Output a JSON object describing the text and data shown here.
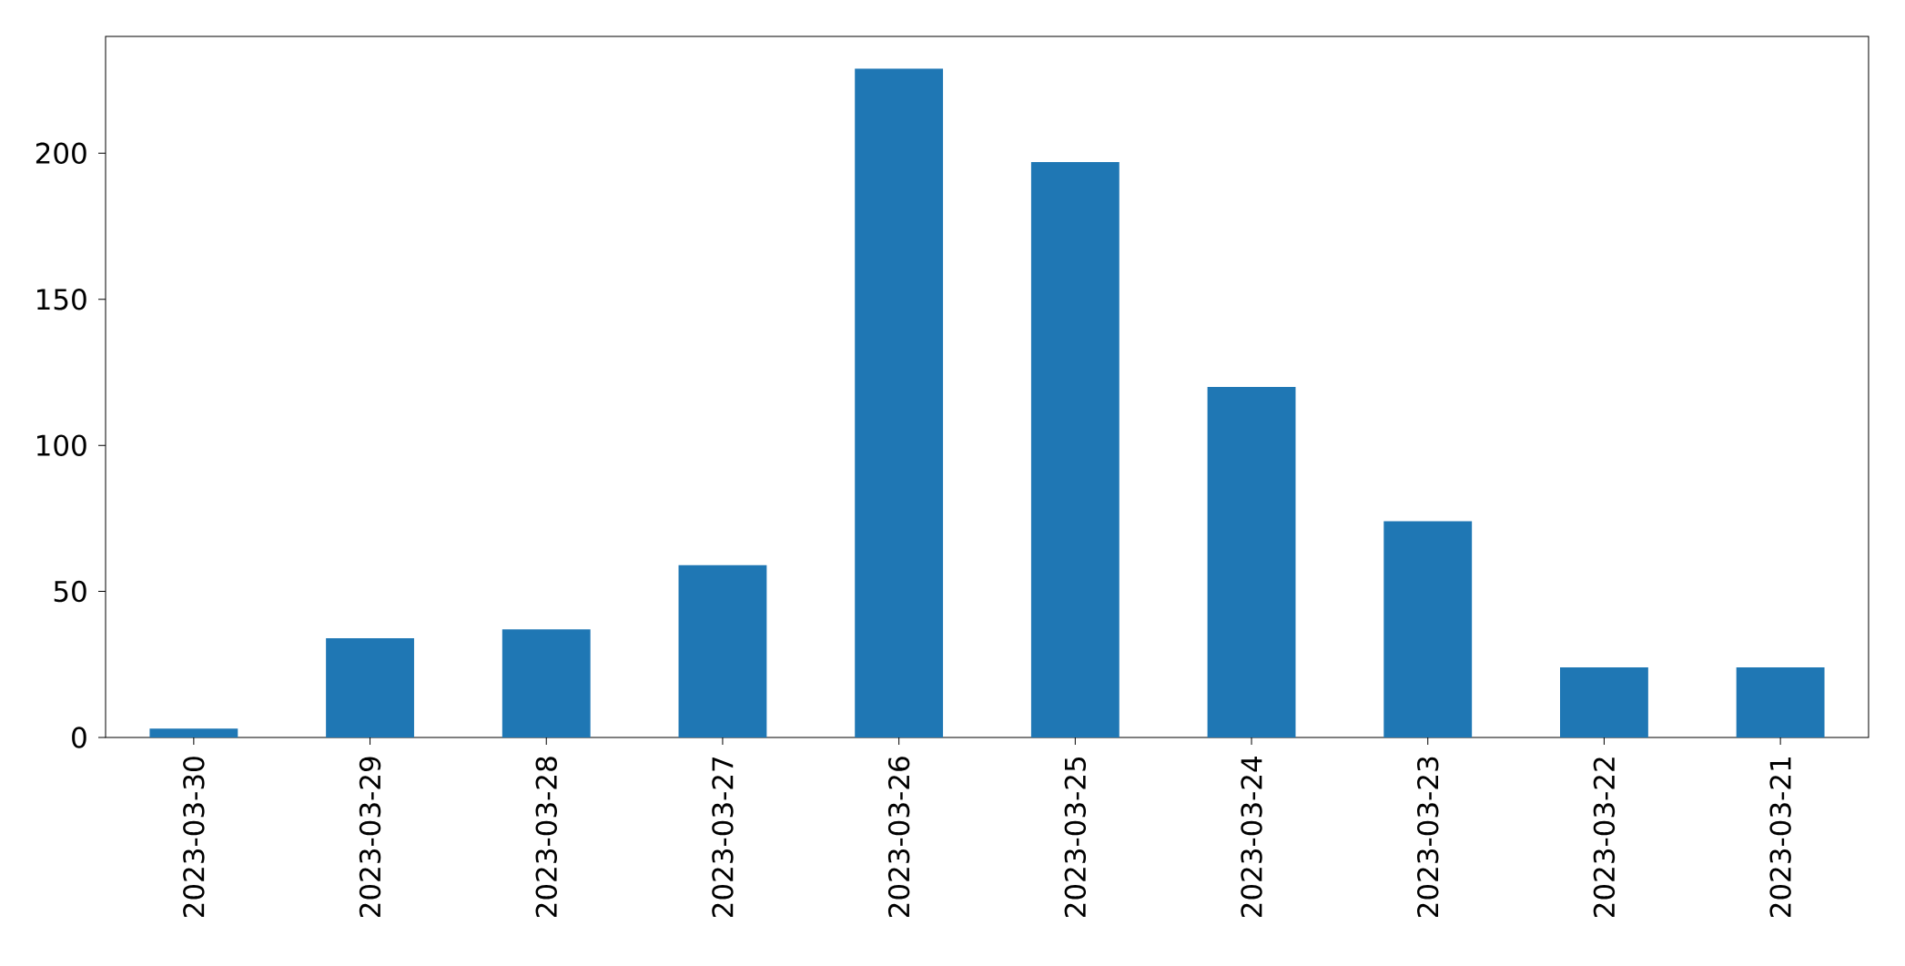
{
  "chart_data": {
    "type": "bar",
    "categories": [
      "2023-03-30",
      "2023-03-29",
      "2023-03-28",
      "2023-03-27",
      "2023-03-26",
      "2023-03-25",
      "2023-03-24",
      "2023-03-23",
      "2023-03-22",
      "2023-03-21"
    ],
    "values": [
      3,
      34,
      37,
      59,
      229,
      197,
      120,
      74,
      24,
      24
    ],
    "color": "#1f77b4",
    "ylim": [
      0,
      240
    ],
    "yticks": [
      0,
      50,
      100,
      150,
      200
    ]
  }
}
